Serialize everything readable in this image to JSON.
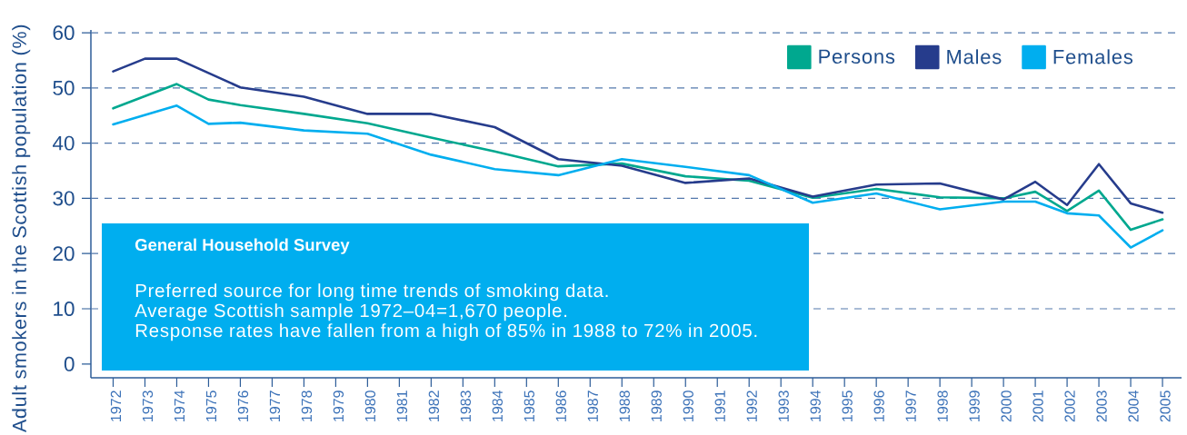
{
  "chart_data": {
    "type": "line",
    "ylabel": "Adult smokers in the Scottish population (%)",
    "annotations": [
      "General Household Survey",
      "Preferred source for long time trends of smoking data.",
      "Average Scottish sample 1972–04=1,670 people.",
      "Response rates have fallen from a high of 85% in 1988 to 72% in 2005."
    ],
    "xlim": [
      1971.3,
      2005.6
    ],
    "xticks": [
      1972,
      1973,
      1974,
      1975,
      1976,
      1977,
      1978,
      1979,
      1980,
      1981,
      1982,
      1983,
      1984,
      1985,
      1986,
      1987,
      1988,
      1989,
      1990,
      1991,
      1992,
      1993,
      1994,
      1995,
      1996,
      1997,
      1998,
      1999,
      2000,
      2001,
      2002,
      2003,
      2004,
      2005
    ],
    "ylim": [
      -2.5,
      60.5
    ],
    "yticks": [
      0,
      10,
      20,
      30,
      40,
      50,
      60
    ],
    "grid": "y",
    "legend": "top right",
    "line_style": "solid",
    "series": [
      {
        "name": "Persons",
        "color": "#00a88f",
        "x": [
          1972,
          1974,
          1975,
          1976,
          1978,
          1980,
          1982,
          1984,
          1986,
          1988,
          1990,
          1992,
          1994,
          1996,
          1998,
          2000,
          2001,
          2002,
          2003,
          2004,
          2005
        ],
        "values": [
          46.3,
          50.7,
          47.9,
          46.9,
          45.3,
          43.6,
          41.0,
          38.5,
          35.8,
          36.3,
          34.0,
          33.2,
          30.1,
          31.7,
          30.2,
          30.0,
          31.2,
          27.7,
          31.4,
          24.3,
          26.2
        ]
      },
      {
        "name": "Males",
        "color": "#263c8c",
        "x": [
          1972,
          1973,
          1974,
          1976,
          1978,
          1980,
          1982,
          1984,
          1986,
          1988,
          1990,
          1992,
          1994,
          1996,
          1998,
          2000,
          2001,
          2002,
          2003,
          2004,
          2005
        ],
        "values": [
          53.0,
          55.3,
          55.3,
          50.1,
          48.4,
          45.3,
          45.3,
          42.9,
          37.1,
          35.9,
          32.8,
          33.6,
          30.3,
          32.5,
          32.7,
          29.8,
          33.0,
          28.8,
          36.2,
          29.1,
          27.4
        ]
      },
      {
        "name": "Females",
        "color": "#00aeef",
        "x": [
          1972,
          1974,
          1975,
          1976,
          1978,
          1980,
          1982,
          1984,
          1986,
          1988,
          1990,
          1992,
          1994,
          1996,
          1998,
          2000,
          2001,
          2002,
          2003,
          2004,
          2005
        ],
        "values": [
          43.4,
          46.8,
          43.5,
          43.7,
          42.3,
          41.7,
          37.9,
          35.3,
          34.2,
          37.1,
          35.7,
          34.2,
          29.2,
          30.9,
          28.0,
          29.4,
          29.4,
          27.3,
          26.9,
          21.1,
          24.2
        ]
      }
    ]
  }
}
